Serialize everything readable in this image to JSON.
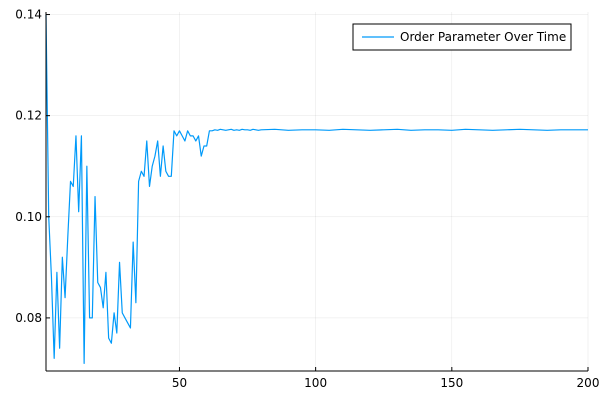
{
  "chart_data": {
    "type": "line",
    "title": "",
    "xlabel": "",
    "ylabel": "",
    "xlim": [
      1,
      200
    ],
    "ylim": [
      0.0695,
      0.1405
    ],
    "x_ticks": [
      50,
      100,
      150,
      200
    ],
    "y_ticks": [
      0.08,
      0.1,
      0.12,
      0.14
    ],
    "x_tick_labels": [
      "50",
      "100",
      "150",
      "200"
    ],
    "y_tick_labels": [
      "0.08",
      "0.10",
      "0.12",
      "0.14"
    ],
    "grid": true,
    "legend_position": "top-right",
    "series": [
      {
        "name": "Order Parameter Over Time",
        "color": "#009AFA",
        "x": [
          1,
          2,
          3,
          4,
          5,
          6,
          7,
          8,
          9,
          10,
          11,
          12,
          13,
          14,
          15,
          16,
          17,
          18,
          19,
          20,
          21,
          22,
          23,
          24,
          25,
          26,
          27,
          28,
          29,
          30,
          31,
          32,
          33,
          34,
          35,
          36,
          37,
          38,
          39,
          40,
          41,
          42,
          43,
          44,
          45,
          46,
          47,
          48,
          49,
          50,
          51,
          52,
          53,
          54,
          55,
          56,
          57,
          58,
          59,
          60,
          61,
          62,
          63,
          64,
          65,
          66,
          67,
          68,
          69,
          70,
          71,
          72,
          73,
          74,
          75,
          76,
          77,
          78,
          79,
          80,
          85,
          90,
          95,
          100,
          105,
          110,
          115,
          120,
          125,
          130,
          135,
          140,
          145,
          150,
          155,
          160,
          165,
          170,
          175,
          180,
          185,
          190,
          195,
          200
        ],
        "y": [
          0.14,
          0.1,
          0.088,
          0.072,
          0.089,
          0.074,
          0.092,
          0.084,
          0.096,
          0.107,
          0.106,
          0.116,
          0.101,
          0.116,
          0.071,
          0.11,
          0.08,
          0.08,
          0.104,
          0.087,
          0.086,
          0.082,
          0.089,
          0.076,
          0.075,
          0.081,
          0.077,
          0.091,
          0.081,
          0.08,
          0.079,
          0.078,
          0.095,
          0.083,
          0.107,
          0.109,
          0.108,
          0.115,
          0.106,
          0.11,
          0.112,
          0.115,
          0.108,
          0.114,
          0.109,
          0.108,
          0.108,
          0.117,
          0.116,
          0.117,
          0.116,
          0.115,
          0.117,
          0.116,
          0.116,
          0.115,
          0.116,
          0.112,
          0.114,
          0.114,
          0.117,
          0.117,
          0.1172,
          0.1171,
          0.1173,
          0.1172,
          0.1171,
          0.1172,
          0.1173,
          0.1171,
          0.1172,
          0.1171,
          0.1173,
          0.1172,
          0.1172,
          0.1171,
          0.1173,
          0.1172,
          0.1171,
          0.1172,
          0.1173,
          0.1171,
          0.1172,
          0.1172,
          0.1171,
          0.1173,
          0.1172,
          0.1171,
          0.1172,
          0.1173,
          0.1171,
          0.1172,
          0.1172,
          0.1171,
          0.1173,
          0.1172,
          0.1171,
          0.1172,
          0.1173,
          0.1172,
          0.1171,
          0.1172,
          0.1172,
          0.1172
        ]
      }
    ]
  }
}
